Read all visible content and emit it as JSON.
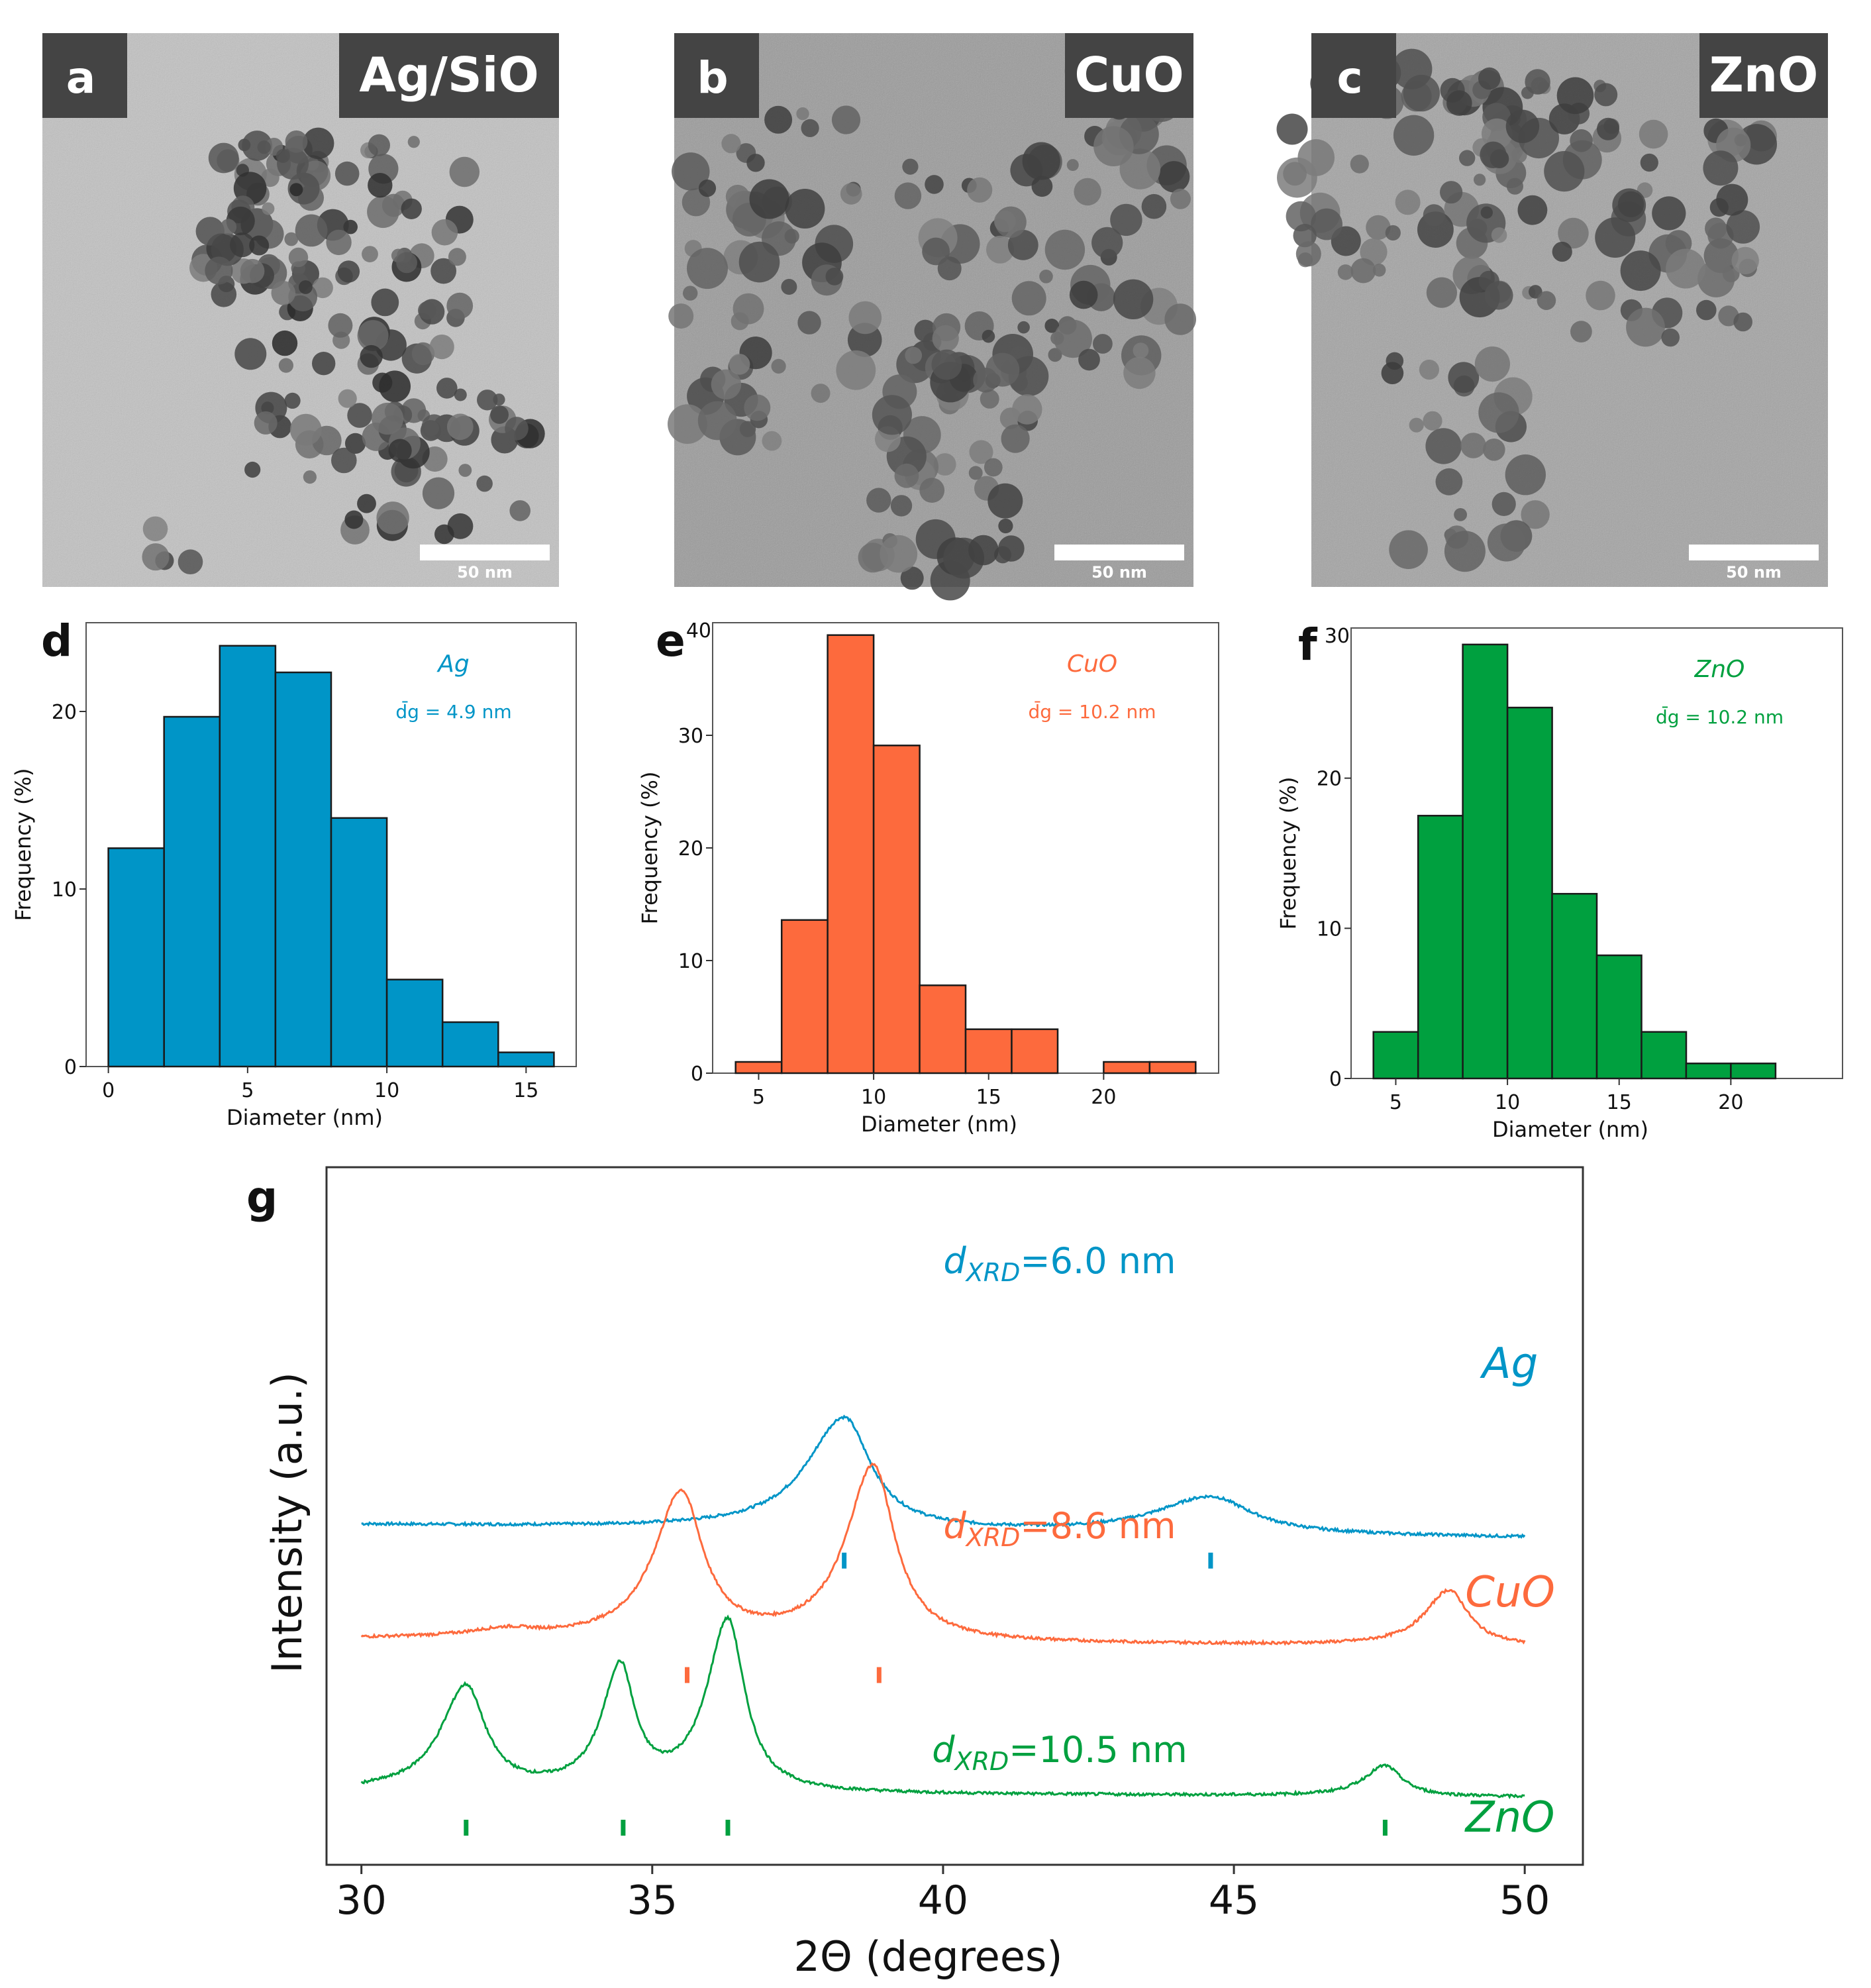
{
  "colors": {
    "ag": "#0095c7",
    "cuo": "#fd6a3d",
    "zno": "#00a03f"
  },
  "tem": [
    {
      "letter": "a",
      "label": "Ag/SiO",
      "scale": "50 nm",
      "bg": "#c2c2c2"
    },
    {
      "letter": "b",
      "label": "CuO",
      "scale": "50 nm",
      "bg": "#9b9b9b"
    },
    {
      "letter": "c",
      "label": "ZnO",
      "scale": "50 nm",
      "bg": "#a4a4a4"
    }
  ],
  "chart_data": [
    {
      "panel": "d",
      "type": "bar",
      "title": "",
      "xlabel": "Diameter (nm)",
      "ylabel": "Frequency (%)",
      "xlim": [
        -0.8,
        16.8
      ],
      "ylim": [
        0,
        25
      ],
      "xticks": [
        0,
        5,
        10,
        15
      ],
      "yticks": [
        0,
        10,
        20
      ],
      "bin_edges": [
        0,
        2,
        4,
        6,
        8,
        10,
        12,
        14,
        16
      ],
      "values": [
        12.3,
        19.7,
        23.7,
        22.2,
        14.0,
        4.9,
        2.5,
        0.8
      ],
      "legend_name": "Ag",
      "annotation": "d̄g = 4.9 nm",
      "color": "#0095c7"
    },
    {
      "panel": "e",
      "type": "bar",
      "title": "",
      "xlabel": "Diameter (nm)",
      "ylabel": "Frequency (%)",
      "xlim": [
        3,
        25
      ],
      "ylim": [
        0,
        40
      ],
      "xticks": [
        5,
        10,
        15,
        20
      ],
      "yticks": [
        0,
        10,
        20,
        30
      ],
      "ytick_top": "40",
      "bin_edges": [
        4,
        6,
        8,
        10,
        12,
        14,
        16,
        18,
        20,
        22,
        24
      ],
      "values": [
        1.0,
        13.6,
        38.9,
        29.1,
        7.8,
        3.9,
        3.9,
        0,
        1.0,
        1.0
      ],
      "legend_name": "CuO",
      "annotation": "d̄g = 10.2 nm",
      "color": "#fd6a3d"
    },
    {
      "panel": "f",
      "type": "bar",
      "title": "",
      "xlabel": "Diameter (nm)",
      "ylabel": "Frequency (%)",
      "xlim": [
        3,
        25
      ],
      "ylim": [
        0,
        30
      ],
      "xticks": [
        5,
        10,
        15,
        20
      ],
      "yticks": [
        0,
        10,
        20
      ],
      "ytick_top": "30",
      "bin_edges": [
        4,
        6,
        8,
        10,
        12,
        14,
        16,
        18,
        20,
        22
      ],
      "values": [
        3.1,
        17.5,
        28.9,
        24.7,
        12.3,
        8.2,
        3.1,
        1.0,
        1.0
      ],
      "legend_name": "ZnO",
      "annotation": "d̄g = 10.2 nm",
      "color": "#00a03f"
    },
    {
      "panel": "g",
      "type": "line",
      "title": "",
      "xlabel": "2Θ (degrees)",
      "ylabel": "Intensity (a.u.)",
      "xlim": [
        29.4,
        51
      ],
      "xticks": [
        30,
        35,
        40,
        45,
        50
      ],
      "series": [
        {
          "name": "Ag",
          "annotation_prefix": "d",
          "annotation_sub": "XRD",
          "annotation_value": "=6.0 nm",
          "offset": 2.1,
          "baseline_slope": -0.005,
          "peaks": [
            {
              "x": 38.3,
              "h": 0.88,
              "w": 0.55,
              "a": 0.4
            },
            {
              "x": 44.6,
              "h": 0.29,
              "w": 0.85,
              "a": 0.3
            }
          ],
          "reference_ticks": [
            38.3,
            44.6
          ]
        },
        {
          "name": "CuO",
          "annotation_prefix": "d",
          "annotation_sub": "XRD",
          "annotation_value": "=8.6 nm",
          "offset": 1.2,
          "baseline_slope": -0.003,
          "peaks": [
            {
              "x": 32.5,
              "h": 0.06,
              "w": 0.6,
              "a": 0.3
            },
            {
              "x": 35.5,
              "h": 1.15,
              "w": 0.45,
              "a": 0.25
            },
            {
              "x": 38.8,
              "h": 1.38,
              "w": 0.45,
              "a": 0.25
            },
            {
              "x": 48.7,
              "h": 0.44,
              "w": 0.4,
              "a": 0.25
            }
          ],
          "reference_ticks": [
            35.6,
            38.9
          ]
        },
        {
          "name": "ZnO",
          "annotation_prefix": "d",
          "annotation_sub": "XRD",
          "annotation_value": "=10.5 nm",
          "offset": 0.0,
          "baseline_slope": -0.002,
          "peaks": [
            {
              "x": 31.8,
              "h": 0.82,
              "w": 0.4,
              "a": 0.3
            },
            {
              "x": 34.45,
              "h": 0.95,
              "w": 0.3,
              "a": 0.25
            },
            {
              "x": 36.3,
              "h": 1.35,
              "w": 0.35,
              "a": 0.25
            },
            {
              "x": 47.6,
              "h": 0.24,
              "w": 0.35,
              "a": 0.25
            }
          ],
          "reference_ticks": [
            31.8,
            34.5,
            36.3,
            47.6
          ]
        }
      ]
    }
  ]
}
